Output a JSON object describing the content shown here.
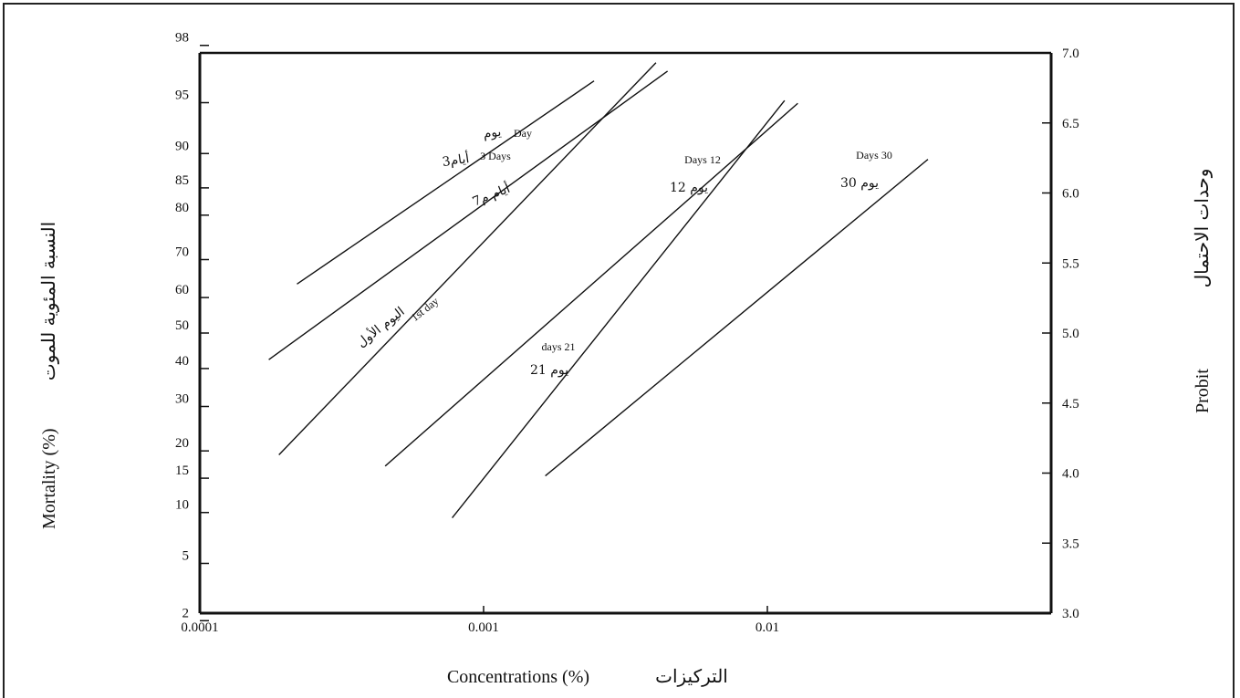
{
  "chart_data": {
    "type": "line",
    "x_scale": "log",
    "xlim": [
      0.0001,
      0.1
    ],
    "x_ticks": [
      "0.0001",
      "0.001",
      "0.01"
    ],
    "y_left_ticks": [
      "98",
      "95",
      "90",
      "85",
      "80",
      "70",
      "60",
      "50",
      "40",
      "30",
      "20",
      "15",
      "10",
      "5",
      "2"
    ],
    "y_right_ticks": [
      "7.0",
      "6.5",
      "6.0",
      "5.5",
      "5.0",
      "4.5",
      "4.0",
      "3.5",
      "3.0"
    ],
    "ylim_probit": [
      3.0,
      7.0
    ],
    "xlabel_en": "Concentrations (%)",
    "xlabel_ar": "التركيزات",
    "ylabel_left_en": "Mortality (%)",
    "ylabel_left_ar": "النسبة المئوية للموت",
    "ylabel_right_en": "Probit",
    "ylabel_right_ar": "وحدات الاحتمال",
    "series": [
      {
        "name": "1st day",
        "label_ar": "اليوم الأول",
        "x": [
          0.00019,
          0.00405
        ],
        "y": [
          4.13,
          6.93
        ]
      },
      {
        "name": "Day",
        "label_ar": "يوم",
        "x": [
          0.00022,
          0.00245
        ],
        "y": [
          5.35,
          6.8
        ]
      },
      {
        "name": "3 Days",
        "label_ar": "3أيام",
        "x": [
          0.000175,
          0.00445
        ],
        "y": [
          4.81,
          6.87
        ]
      },
      {
        "name": "7",
        "label_ar": "7أيام م",
        "x": [
          0.00255
        ],
        "y": [
          6.47
        ]
      },
      {
        "name": "Days 12",
        "label_ar": "12 يوم",
        "x": [
          0.00045,
          0.0128
        ],
        "y": [
          4.05,
          6.64
        ]
      },
      {
        "name": "days 21",
        "label_ar": "21 يوم",
        "x": [
          0.000775,
          0.0115
        ],
        "y": [
          3.68,
          6.66
        ]
      },
      {
        "name": "Days 30",
        "label_ar": "30 يوم",
        "x": [
          0.00165,
          0.0368
        ],
        "y": [
          3.98,
          6.24
        ]
      }
    ]
  }
}
